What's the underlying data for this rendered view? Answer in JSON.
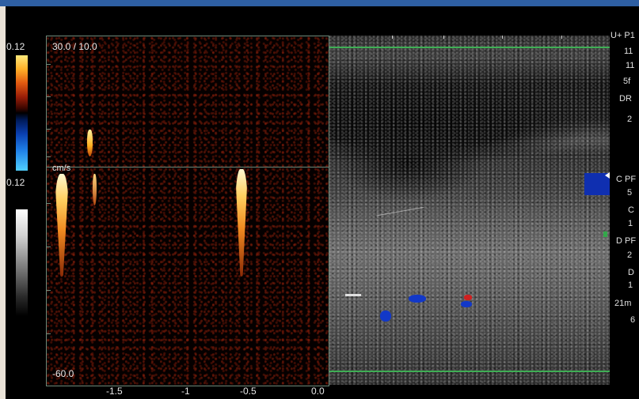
{
  "color_scale": {
    "top_value": "0.12",
    "bottom_value": "0.12"
  },
  "spectral": {
    "prf_label": "30.0 / 10.0",
    "unit_label": "cm/s",
    "min_label": "-60.0",
    "x_ticks": [
      "-1.5",
      "-1",
      "-0.5",
      "0.0"
    ]
  },
  "right_panel": {
    "lines": [
      "U+ P1",
      "11",
      "11",
      "5f",
      "DR",
      "2",
      "C PF",
      "5",
      "C",
      "1",
      "D PF",
      "2",
      "D",
      "1",
      "21m",
      "6"
    ]
  },
  "colors": {
    "frame_top": "#2e5fa3",
    "frame_left": "#e9e2d7",
    "boundary_line": "#3fae55",
    "panel_border": "#6e8a7a",
    "doppler_blue": "#1238c8",
    "doppler_red": "#d02020"
  }
}
